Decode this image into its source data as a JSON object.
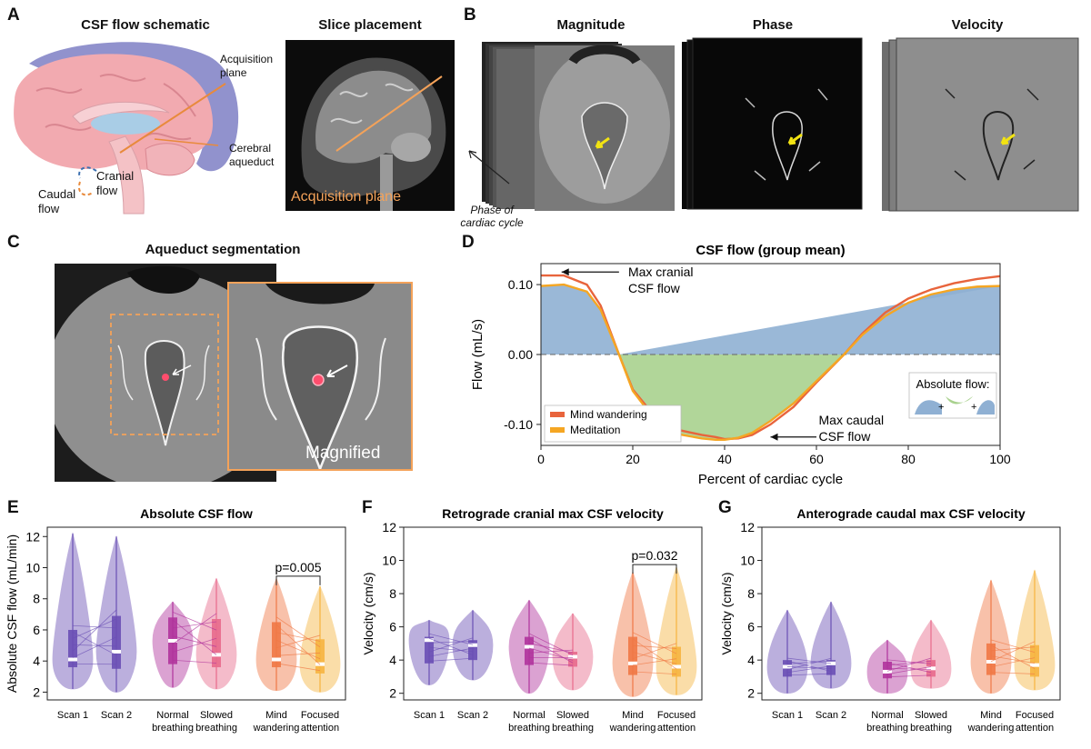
{
  "panels": {
    "A": {
      "label": "A",
      "title_schematic": "CSF flow schematic",
      "title_slice": "Slice placement"
    },
    "B": {
      "label": "B",
      "title_magnitude": "Magnitude",
      "title_phase": "Phase",
      "title_velocity": "Velocity"
    },
    "C": {
      "label": "C",
      "title": "Aqueduct segmentation"
    },
    "D": {
      "label": "D"
    },
    "E": {
      "label": "E"
    },
    "F": {
      "label": "F"
    },
    "G": {
      "label": "G"
    }
  },
  "schematic": {
    "acquisition_plane": "Acquisition plane",
    "cerebral_aqueduct": "Cerebral aqueduct",
    "cranial_flow": "Cranial flow",
    "caudal_flow": "Caudal flow"
  },
  "slice": {
    "caption": "Acquisition plane"
  },
  "mri_stack": {
    "phase_of_cycle": "Phase of cardiac cycle"
  },
  "segmentation": {
    "magnified": "Magnified"
  },
  "colors": {
    "orange_accent": "#f4a259",
    "mind_wandering": "#e8643c",
    "meditation": "#f5a623",
    "pos_fill": "#8fb0d3",
    "neg_fill": "#a9d18e",
    "purple": "#6a4fb5",
    "magenta": "#b0339c",
    "pink": "#e86a8c",
    "orange_violin": "#f07845",
    "yellow_violin": "#f6b43f"
  },
  "chart_data": [
    {
      "id": "D",
      "type": "area",
      "title": "CSF flow (group mean)",
      "xlabel": "Percent of cardiac cycle",
      "ylabel": "Flow (mL/s)",
      "xlim": [
        0,
        100
      ],
      "ylim": [
        -0.13,
        0.13
      ],
      "xticks": [
        "0",
        "20",
        "40",
        "60",
        "80",
        "100"
      ],
      "yticks": [
        "0.10",
        "0.00",
        "-0.10"
      ],
      "x": [
        0,
        5,
        10,
        13,
        17,
        20,
        25,
        30,
        35,
        38,
        40,
        43,
        46,
        50,
        55,
        60,
        66,
        70,
        75,
        80,
        85,
        90,
        95,
        100
      ],
      "series": [
        {
          "name": "Mind wandering",
          "values": [
            0.113,
            0.113,
            0.1,
            0.07,
            0.0,
            -0.05,
            -0.09,
            -0.108,
            -0.115,
            -0.118,
            -0.121,
            -0.12,
            -0.115,
            -0.1,
            -0.075,
            -0.04,
            0.0,
            0.03,
            0.06,
            0.08,
            0.093,
            0.102,
            0.108,
            0.112
          ]
        },
        {
          "name": "Meditation",
          "values": [
            0.098,
            0.1,
            0.09,
            0.064,
            0.0,
            -0.052,
            -0.095,
            -0.114,
            -0.12,
            -0.122,
            -0.122,
            -0.119,
            -0.112,
            -0.095,
            -0.07,
            -0.038,
            0.0,
            0.028,
            0.055,
            0.074,
            0.086,
            0.093,
            0.097,
            0.098
          ]
        }
      ],
      "legend": "lower-left",
      "annotations": [
        "Max cranial CSF flow",
        "Max caudal CSF flow"
      ],
      "inset_title": "Absolute flow:",
      "inset_signs": [
        "+",
        "+"
      ]
    },
    {
      "id": "E",
      "type": "violin",
      "title": "Absolute CSF flow",
      "ylabel": "Absolute CSF flow (mL/min)",
      "ylim": [
        1.5,
        12.6
      ],
      "yticks": [
        "2",
        "4",
        "6",
        "8",
        "10",
        "12"
      ],
      "categories": [
        "Scan 1",
        "Scan 2",
        "Normal breathing",
        "Slowed breathing",
        "Mind wandering",
        "Focused attention"
      ],
      "medians": [
        4.1,
        4.6,
        5.3,
        4.4,
        4.1,
        3.8
      ],
      "q1": [
        3.6,
        3.5,
        3.8,
        3.6,
        3.6,
        3.2
      ],
      "q3": [
        6.0,
        6.9,
        6.8,
        6.7,
        6.5,
        5.4
      ],
      "min": [
        2.2,
        2.0,
        2.3,
        2.2,
        2.1,
        2.0
      ],
      "max": [
        12.2,
        12.0,
        7.8,
        9.3,
        9.3,
        8.8
      ],
      "annotation": "p=0.005"
    },
    {
      "id": "F",
      "type": "violin",
      "title": "Retrograde cranial max CSF velocity",
      "ylabel": "Velocity (cm/s)",
      "ylim": [
        1.6,
        12
      ],
      "yticks": [
        "2",
        "4",
        "6",
        "8",
        "10",
        "12"
      ],
      "categories": [
        "Scan 1",
        "Scan 2",
        "Normal breathing",
        "Slowed breathing",
        "Mind wandering",
        "Focused attention"
      ],
      "medians": [
        5.2,
        4.9,
        4.8,
        4.2,
        3.8,
        3.6
      ],
      "q1": [
        3.8,
        4.0,
        3.7,
        3.6,
        3.1,
        3.0
      ],
      "q3": [
        5.4,
        5.2,
        5.4,
        4.5,
        5.4,
        4.8
      ],
      "min": [
        2.5,
        2.8,
        2.0,
        2.2,
        1.8,
        1.9
      ],
      "max": [
        6.4,
        7.0,
        7.6,
        6.8,
        9.3,
        9.6
      ],
      "annotation": "p=0.032"
    },
    {
      "id": "G",
      "type": "violin",
      "title": "Anterograde caudal max CSF velocity",
      "ylabel": "Velocity (cm/s)",
      "ylim": [
        1.6,
        12
      ],
      "yticks": [
        "2",
        "4",
        "6",
        "8",
        "10",
        "12"
      ],
      "categories": [
        "Scan 1",
        "Scan 2",
        "Normal breathing",
        "Slowed breathing",
        "Mind wandering",
        "Focused attention"
      ],
      "medians": [
        3.6,
        3.8,
        3.3,
        3.5,
        3.9,
        3.7
      ],
      "q1": [
        3.0,
        3.1,
        2.9,
        3.0,
        3.1,
        3.0
      ],
      "q3": [
        4.0,
        4.0,
        3.9,
        4.0,
        5.0,
        4.9
      ],
      "min": [
        2.0,
        2.3,
        2.0,
        2.3,
        2.0,
        2.2
      ],
      "max": [
        7.0,
        7.5,
        5.2,
        6.4,
        8.8,
        9.4
      ],
      "annotation": ""
    }
  ]
}
